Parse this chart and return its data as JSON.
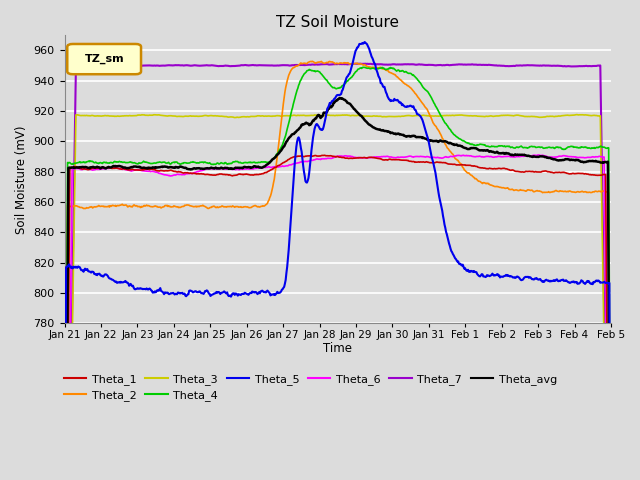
{
  "title": "TZ Soil Moisture",
  "xlabel": "Time",
  "ylabel": "Soil Moisture (mV)",
  "ylim": [
    780,
    970
  ],
  "yticks": [
    780,
    800,
    820,
    840,
    860,
    880,
    900,
    920,
    940,
    960
  ],
  "legend_label": "TZ_sm",
  "bg_color": "#dcdcdc",
  "plot_bg_color": "#dcdcdc",
  "series": {
    "Theta_1": {
      "color": "#cc0000",
      "lw": 1.2
    },
    "Theta_2": {
      "color": "#ff8800",
      "lw": 1.2
    },
    "Theta_3": {
      "color": "#cccc00",
      "lw": 1.2
    },
    "Theta_4": {
      "color": "#00cc00",
      "lw": 1.2
    },
    "Theta_5": {
      "color": "#0000ee",
      "lw": 1.5
    },
    "Theta_6": {
      "color": "#ff00ff",
      "lw": 1.2
    },
    "Theta_7": {
      "color": "#9900cc",
      "lw": 1.5
    },
    "Theta_avg": {
      "color": "#000000",
      "lw": 1.8
    }
  },
  "xtick_labels": [
    "Jan 21",
    "Jan 22",
    "Jan 23",
    "Jan 24",
    "Jan 25",
    "Jan 26",
    "Jan 27",
    "Jan 28",
    "Jan 29",
    "Jan 30",
    "Jan 31",
    "Feb 1",
    "Feb 2",
    "Feb 3",
    "Feb 4",
    "Feb 5"
  ]
}
